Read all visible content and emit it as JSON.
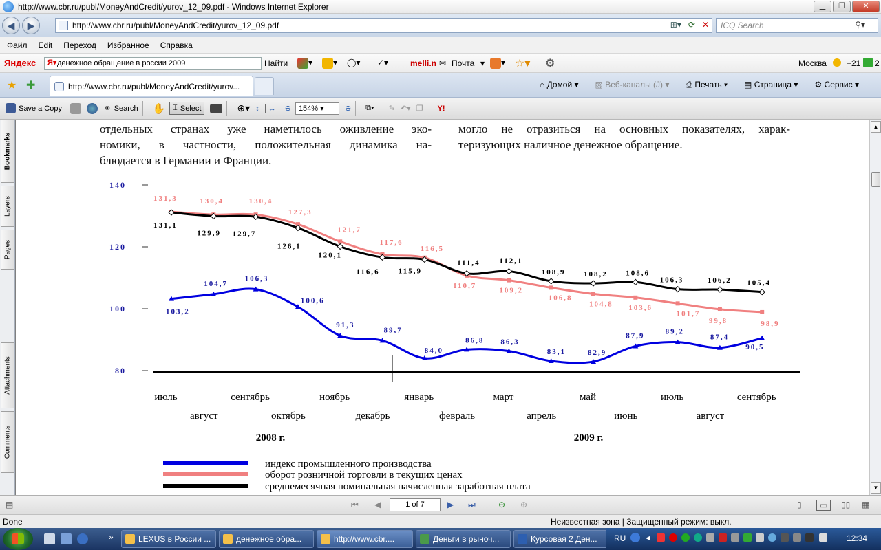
{
  "window": {
    "title": "http://www.cbr.ru/publ/MoneyAndCredit/yurov_12_09.pdf - Windows Internet Explorer"
  },
  "address": {
    "url": "http://www.cbr.ru/publ/MoneyAndCredit/yurov_12_09.pdf"
  },
  "search": {
    "placeholder": "ICQ Search"
  },
  "menu": {
    "items": [
      "Файл",
      "Edit",
      "Переход",
      "Избранное",
      "Справка"
    ]
  },
  "yandex": {
    "logo": "Яндекс",
    "query": "денежное обращение в россии 2009",
    "find": "Найти",
    "mellin": "melli.n",
    "mail": "Почта",
    "city": "Москва",
    "temp": "+21",
    "extra": "2"
  },
  "tabs": {
    "active": "http://www.cbr.ru/publ/MoneyAndCredit/yurov..."
  },
  "tabtools": {
    "home": "Домой",
    "feeds": "Веб-каналы (J)",
    "print": "Печать",
    "page": "Страница",
    "service": "Сервис"
  },
  "acrobat": {
    "save": "Save a Copy",
    "search": "Search",
    "select": "Select",
    "zoom": "154%"
  },
  "leftpanel": {
    "bookmarks": "Bookmarks",
    "layers": "Layers",
    "pages": "Pages",
    "attachments": "Attachments",
    "comments": "Comments"
  },
  "doc": {
    "col1_lines": [
      "отдельных странах уже наметилось оживление эко-",
      "номики, в частности, положительная динамика на-",
      "блюдается в Германии и Франции."
    ],
    "col2_lines": [
      "могло не отразиться на основных показателях, харак-",
      "теризующих наличное денежное обращение."
    ]
  },
  "chart_data": {
    "type": "line",
    "ylim": [
      80,
      140
    ],
    "yticks": [
      "140",
      "120",
      "100",
      "80"
    ],
    "months_top": [
      "июль",
      "сентябрь",
      "ноябрь",
      "январь",
      "март",
      "май",
      "июль",
      "сентябрь"
    ],
    "months_bottom": [
      "август",
      "октябрь",
      "декабрь",
      "февраль",
      "апрель",
      "июнь",
      "август"
    ],
    "years": [
      "2008 г.",
      "2009 г."
    ],
    "series": [
      {
        "name": "индекс промышленного производства",
        "color": "#0000e0",
        "values": [
          103.2,
          104.7,
          106.3,
          100.6,
          91.3,
          89.7,
          84.0,
          86.8,
          86.3,
          83.1,
          82.9,
          87.9,
          89.2,
          87.4,
          90.5
        ],
        "labels": [
          "103,2",
          "104,7",
          "106,3",
          "100,6",
          "91,3",
          "89,7",
          "84,0",
          "86,8",
          "86,3",
          "83,1",
          "82,9",
          "87,9",
          "89,2",
          "87,4",
          "90,5"
        ]
      },
      {
        "name": "оборот розничной торговли в текущих ценах",
        "color": "#f08080",
        "values": [
          131.3,
          130.4,
          130.4,
          127.3,
          121.7,
          117.6,
          116.5,
          110.7,
          109.2,
          106.8,
          104.8,
          103.6,
          101.7,
          99.8,
          98.9
        ],
        "labels": [
          "131,3",
          "130,4",
          "130,4",
          "127,3",
          "121,7",
          "117,6",
          "116,5",
          "110,7",
          "109,2",
          "106,8",
          "104,8",
          "103,6",
          "101,7",
          "99,8",
          "98,9"
        ]
      },
      {
        "name": "среднемесячная номинальная начисленная заработная плата",
        "color": "#000000",
        "values": [
          131.1,
          129.9,
          129.7,
          126.1,
          120.1,
          116.6,
          115.9,
          111.4,
          112.1,
          108.9,
          108.2,
          108.6,
          106.3,
          106.2,
          105.4
        ],
        "labels": [
          "131,1",
          "129,9",
          "129,7",
          "126,1",
          "120,1",
          "116,6",
          "115,9",
          "111,4",
          "112,1",
          "108,9",
          "108,2",
          "108,6",
          "106,3",
          "106,2",
          "105,4"
        ]
      }
    ]
  },
  "pagenav": {
    "page": "1 of 7"
  },
  "status": {
    "left": "Done",
    "zone": "Неизвестная зона | Защищенный режим: выкл."
  },
  "taskbar": {
    "items": [
      "LEXUS в России ...",
      "денежное обра...",
      "http://www.cbr....",
      "Деньги в рыноч...",
      "Курсовая 2 Ден..."
    ],
    "lang": "RU",
    "time": "12:34"
  },
  "colors": {
    "blue": "#0000e0",
    "pink": "#f08080",
    "black": "#000000",
    "label_blue": "#1a1aa0"
  }
}
